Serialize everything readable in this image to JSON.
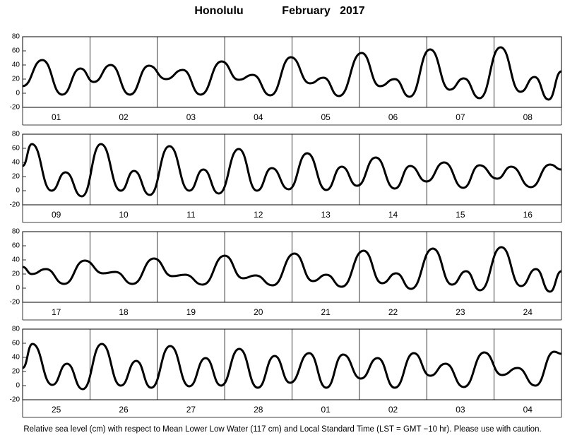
{
  "title": "Honolulu",
  "period": "February   2017",
  "footnote": "Relative sea level (cm) with respect to Mean Lower Low Water (117 cm) and Local Standard Time (LST = GMT −10 hr). Please use with caution.",
  "chart_data": [
    {
      "type": "line",
      "categories": [
        "01",
        "02",
        "03",
        "04",
        "05",
        "06",
        "07",
        "08"
      ],
      "xlim": [
        0,
        192
      ],
      "ylim": [
        -20,
        80
      ],
      "yticks": [
        -20,
        0,
        20,
        40,
        60,
        80
      ],
      "x": [
        0,
        7.0,
        14.1,
        20.6,
        25.4,
        31.4,
        38.2,
        45.0,
        51.1,
        57.1,
        63.4,
        70.9,
        77.0,
        82.0,
        88.3,
        95.6,
        102.4,
        107.2,
        112.7,
        120.8,
        127.3,
        132.6,
        137.9,
        145.2,
        152.2,
        157.2,
        162.8,
        170.3,
        177.4,
        182.4,
        187.4,
        192
      ],
      "series": [
        {
          "color": "#000000",
          "values": [
            10,
            47,
            -2,
            35,
            16,
            40,
            -2,
            39,
            20,
            33,
            -2,
            45,
            19,
            26,
            -3,
            51,
            14,
            22,
            -4,
            57,
            10,
            20,
            -5,
            62,
            5,
            21,
            -7,
            65,
            2,
            23,
            -9,
            31
          ]
        }
      ]
    },
    {
      "type": "line",
      "categories": [
        "09",
        "10",
        "11",
        "12",
        "13",
        "14",
        "15",
        "16"
      ],
      "xlim": [
        0,
        192
      ],
      "ylim": [
        -20,
        80
      ],
      "yticks": [
        -20,
        0,
        20,
        40,
        60,
        80
      ],
      "x": [
        0,
        3.3,
        10.3,
        15.3,
        21.1,
        27.9,
        35.0,
        39.7,
        45.3,
        52.3,
        59.4,
        64.4,
        69.9,
        77.0,
        83.5,
        88.8,
        94.8,
        101.4,
        108.2,
        113.7,
        119.2,
        125.8,
        132.6,
        138.1,
        143.9,
        150.2,
        157.0,
        162.8,
        169.1,
        174.1,
        181.1,
        187.9,
        192
      ],
      "series": [
        {
          "color": "#000000",
          "values": [
            35,
            66,
            0,
            26,
            -8,
            66,
            0,
            28,
            -6,
            63,
            0,
            30,
            -4,
            59,
            0,
            32,
            2,
            53,
            1,
            34,
            7,
            47,
            3,
            35,
            13,
            40,
            4,
            36,
            17,
            34,
            5,
            37,
            30
          ]
        }
      ]
    },
    {
      "type": "line",
      "categories": [
        "17",
        "18",
        "19",
        "20",
        "21",
        "22",
        "23",
        "24"
      ],
      "xlim": [
        0,
        192
      ],
      "ylim": [
        -20,
        80
      ],
      "yticks": [
        -20,
        0,
        20,
        40,
        60,
        80
      ],
      "x": [
        0,
        3.3,
        8.3,
        14.8,
        22.1,
        28.7,
        33.0,
        39.2,
        46.8,
        53.3,
        57.9,
        64.2,
        72.0,
        78.5,
        83.0,
        89.1,
        96.9,
        103.4,
        108.2,
        113.7,
        121.5,
        128.1,
        133.1,
        138.4,
        146.2,
        153.0,
        158.0,
        163.0,
        170.6,
        177.6,
        182.9,
        187.9,
        192
      ],
      "series": [
        {
          "color": "#000000",
          "values": [
            30,
            20,
            27,
            6,
            39,
            21,
            23,
            6,
            42,
            17,
            19,
            5,
            46,
            14,
            18,
            4,
            49,
            10,
            19,
            2,
            53,
            7,
            21,
            -1,
            56,
            5,
            24,
            -3,
            58,
            3,
            27,
            -5,
            24
          ]
        }
      ]
    },
    {
      "type": "line",
      "categories": [
        "25",
        "26",
        "27",
        "28",
        "01",
        "02",
        "03",
        "04"
      ],
      "xlim": [
        0,
        192
      ],
      "ylim": [
        -20,
        80
      ],
      "yticks": [
        -20,
        0,
        20,
        40,
        60,
        80
      ],
      "x": [
        0,
        3.5,
        10.6,
        15.8,
        21.4,
        28.2,
        35.0,
        40.5,
        45.8,
        52.6,
        59.4,
        65.2,
        70.7,
        77.2,
        83.8,
        89.8,
        95.3,
        102.1,
        108.2,
        114.2,
        120.5,
        126.5,
        132.6,
        139.4,
        145.2,
        150.7,
        157.2,
        164.5,
        170.8,
        176.4,
        182.7,
        189.4,
        192
      ],
      "series": [
        {
          "color": "#000000",
          "values": [
            25,
            59,
            1,
            31,
            -5,
            59,
            0,
            35,
            -3,
            56,
            -1,
            39,
            0,
            52,
            -3,
            42,
            4,
            46,
            -3,
            44,
            10,
            39,
            -3,
            46,
            14,
            31,
            -2,
            47,
            15,
            25,
            0,
            48,
            45
          ]
        }
      ]
    }
  ]
}
